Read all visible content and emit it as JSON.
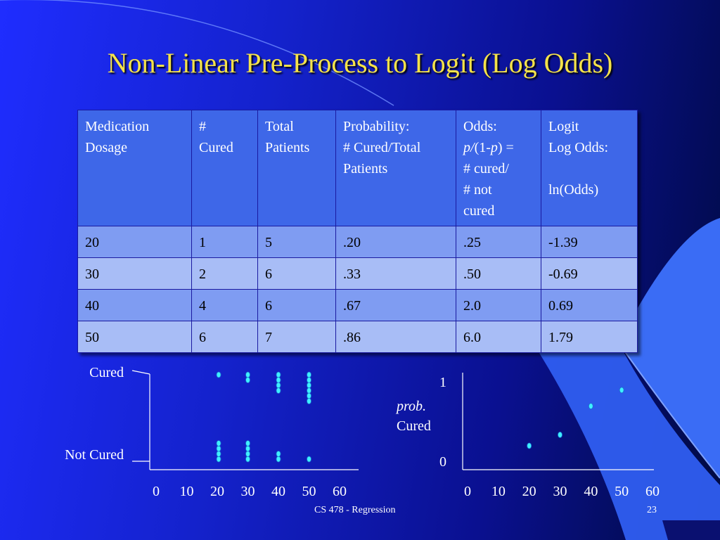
{
  "slide": {
    "title": "Non-Linear Pre-Process to Logit (Log Odds)",
    "footer": "CS 478 - Regression",
    "page_number": "23"
  },
  "table": {
    "headers": [
      "Medication\nDosage",
      "#\nCured",
      "Total\nPatients",
      "Probability:\n# Cured/Total\nPatients",
      [
        "Odds:\n",
        "p/",
        "(1-",
        "p",
        ") =\n# cured/\n# not\ncured"
      ],
      "Logit\nLog Odds:\n\nln(Odds)"
    ],
    "rows": [
      [
        "20",
        "1",
        "5",
        ".20",
        ".25",
        "-1.39"
      ],
      [
        "30",
        "2",
        "6",
        ".33",
        ".50",
        "-0.69"
      ],
      [
        "40",
        "4",
        "6",
        ".67",
        "2.0",
        "0.69"
      ],
      [
        "50",
        "6",
        "7",
        ".86",
        "6.0",
        "1.79"
      ]
    ]
  },
  "chart_data": [
    {
      "type": "scatter",
      "y_categories": [
        "Not Cured",
        "Cured"
      ],
      "x_ticks": [
        "0",
        "10",
        "20",
        "30",
        "40",
        "50",
        "60"
      ],
      "xlim": [
        0,
        60
      ],
      "dosages": [
        20,
        30,
        40,
        50
      ],
      "cured_counts": [
        1,
        2,
        4,
        6
      ],
      "not_cured_counts": [
        4,
        4,
        2,
        1
      ],
      "marker_color": "#3ff0ff"
    },
    {
      "type": "scatter",
      "ylabel_italic": "prob.",
      "ylabel": "Cured",
      "y_ticks": [
        "0",
        "1"
      ],
      "ylim": [
        0,
        1
      ],
      "x_ticks": [
        "0",
        "10",
        "20",
        "30",
        "40",
        "50",
        "60"
      ],
      "xlim": [
        0,
        60
      ],
      "points": [
        {
          "x": 20,
          "y": 0.2
        },
        {
          "x": 30,
          "y": 0.33
        },
        {
          "x": 40,
          "y": 0.67
        },
        {
          "x": 50,
          "y": 0.86
        }
      ],
      "marker_color": "#3ff0ff"
    }
  ]
}
